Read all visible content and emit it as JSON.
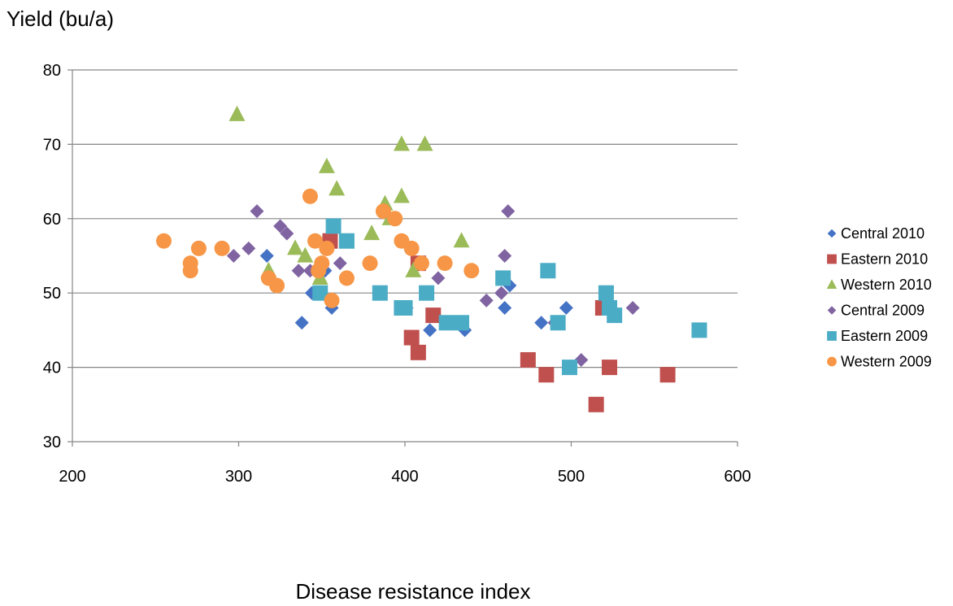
{
  "chart_data": {
    "type": "scatter",
    "xlabel": "Disease resistance index",
    "ylabel": "Yield (bu/a)",
    "xlim": [
      200,
      600
    ],
    "ylim": [
      30,
      80
    ],
    "xticks": [
      200,
      300,
      400,
      500,
      600
    ],
    "yticks": [
      30,
      40,
      50,
      60,
      70,
      80
    ],
    "grid": "horizontal",
    "legend": "right",
    "series": [
      {
        "name": "Central 2010",
        "marker": "diamond",
        "color": "#4472C4",
        "points": [
          [
            317,
            55
          ],
          [
            338,
            46
          ],
          [
            344,
            50
          ],
          [
            352,
            53
          ],
          [
            356,
            48
          ],
          [
            401,
            48
          ],
          [
            415,
            45
          ],
          [
            436,
            45
          ],
          [
            460,
            48
          ],
          [
            463,
            51
          ],
          [
            482,
            46
          ],
          [
            497,
            48
          ]
        ]
      },
      {
        "name": "Eastern 2010",
        "marker": "square",
        "color": "#C0504D",
        "points": [
          [
            355,
            57
          ],
          [
            404,
            44
          ],
          [
            408,
            54
          ],
          [
            408,
            42
          ],
          [
            417,
            47
          ],
          [
            474,
            41
          ],
          [
            485,
            39
          ],
          [
            515,
            35
          ],
          [
            519,
            48
          ],
          [
            523,
            40
          ],
          [
            558,
            39
          ]
        ]
      },
      {
        "name": "Western 2010",
        "marker": "triangle",
        "color": "#9BBB59",
        "points": [
          [
            299,
            74
          ],
          [
            318,
            53
          ],
          [
            334,
            56
          ],
          [
            340,
            55
          ],
          [
            349,
            52
          ],
          [
            353,
            67
          ],
          [
            359,
            64
          ],
          [
            380,
            58
          ],
          [
            388,
            62
          ],
          [
            391,
            60
          ],
          [
            398,
            70
          ],
          [
            398,
            63
          ],
          [
            405,
            53
          ],
          [
            412,
            70
          ],
          [
            434,
            57
          ]
        ]
      },
      {
        "name": "Central 2009",
        "marker": "diamond",
        "color": "#8064A2",
        "points": [
          [
            297,
            55
          ],
          [
            306,
            56
          ],
          [
            311,
            61
          ],
          [
            325,
            59
          ],
          [
            329,
            58
          ],
          [
            336,
            53
          ],
          [
            343,
            53
          ],
          [
            361,
            54
          ],
          [
            420,
            52
          ],
          [
            449,
            49
          ],
          [
            458,
            50
          ],
          [
            460,
            55
          ],
          [
            462,
            61
          ],
          [
            490,
            46
          ],
          [
            506,
            41
          ],
          [
            537,
            48
          ]
        ]
      },
      {
        "name": "Eastern 2009",
        "marker": "square",
        "color": "#4BACC6",
        "points": [
          [
            349,
            50
          ],
          [
            357,
            59
          ],
          [
            365,
            57
          ],
          [
            385,
            50
          ],
          [
            398,
            48
          ],
          [
            400,
            48
          ],
          [
            413,
            50
          ],
          [
            425,
            46
          ],
          [
            434,
            46
          ],
          [
            459,
            52
          ],
          [
            486,
            53
          ],
          [
            492,
            46
          ],
          [
            499,
            40
          ],
          [
            521,
            50
          ],
          [
            523,
            48
          ],
          [
            526,
            47
          ],
          [
            577,
            45
          ]
        ]
      },
      {
        "name": "Western 2009",
        "marker": "circle",
        "color": "#F79646",
        "points": [
          [
            255,
            57
          ],
          [
            271,
            54
          ],
          [
            271,
            53
          ],
          [
            276,
            56
          ],
          [
            290,
            56
          ],
          [
            318,
            52
          ],
          [
            323,
            51
          ],
          [
            343,
            63
          ],
          [
            346,
            57
          ],
          [
            348,
            53
          ],
          [
            350,
            54
          ],
          [
            353,
            56
          ],
          [
            356,
            49
          ],
          [
            365,
            52
          ],
          [
            379,
            54
          ],
          [
            387,
            61
          ],
          [
            394,
            60
          ],
          [
            398,
            57
          ],
          [
            404,
            56
          ],
          [
            410,
            54
          ],
          [
            424,
            54
          ],
          [
            440,
            53
          ]
        ]
      }
    ]
  }
}
